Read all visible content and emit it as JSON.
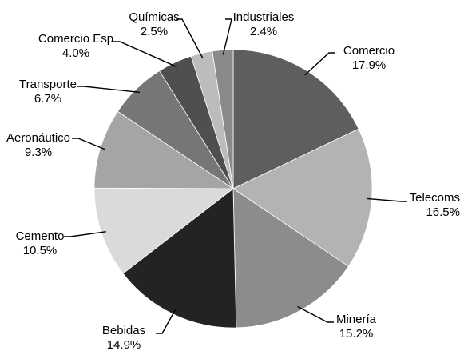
{
  "chart_data": {
    "type": "pie",
    "title": "",
    "start": "top",
    "direction": "clockwise",
    "slices": [
      {
        "label": "Comercio",
        "value_label": "17.9%",
        "value": 17.9,
        "color": "#5e5e5e"
      },
      {
        "label": "Telecoms",
        "value_label": "16.5%",
        "value": 16.5,
        "color": "#b3b3b3"
      },
      {
        "label": "Minería",
        "value_label": "15.2%",
        "value": 15.2,
        "color": "#8c8c8c"
      },
      {
        "label": "Bebidas",
        "value_label": "14.9%",
        "value": 14.9,
        "color": "#232323"
      },
      {
        "label": "Cemento",
        "value_label": "10.5%",
        "value": 10.5,
        "color": "#dadada"
      },
      {
        "label": "Aeronáutico",
        "value_label": "9.3%",
        "value": 9.3,
        "color": "#a5a5a5"
      },
      {
        "label": "Transporte",
        "value_label": "6.7%",
        "value": 6.7,
        "color": "#767676"
      },
      {
        "label": "Comercio Esp",
        "value_label": "4.0%",
        "value": 4.0,
        "color": "#4f4f4f"
      },
      {
        "label": "Químicas",
        "value_label": "2.5%",
        "value": 2.5,
        "color": "#bcbcbc"
      },
      {
        "label": "Industriales",
        "value_label": "2.4%",
        "value": 2.4,
        "color": "#8a8a8a"
      }
    ]
  }
}
